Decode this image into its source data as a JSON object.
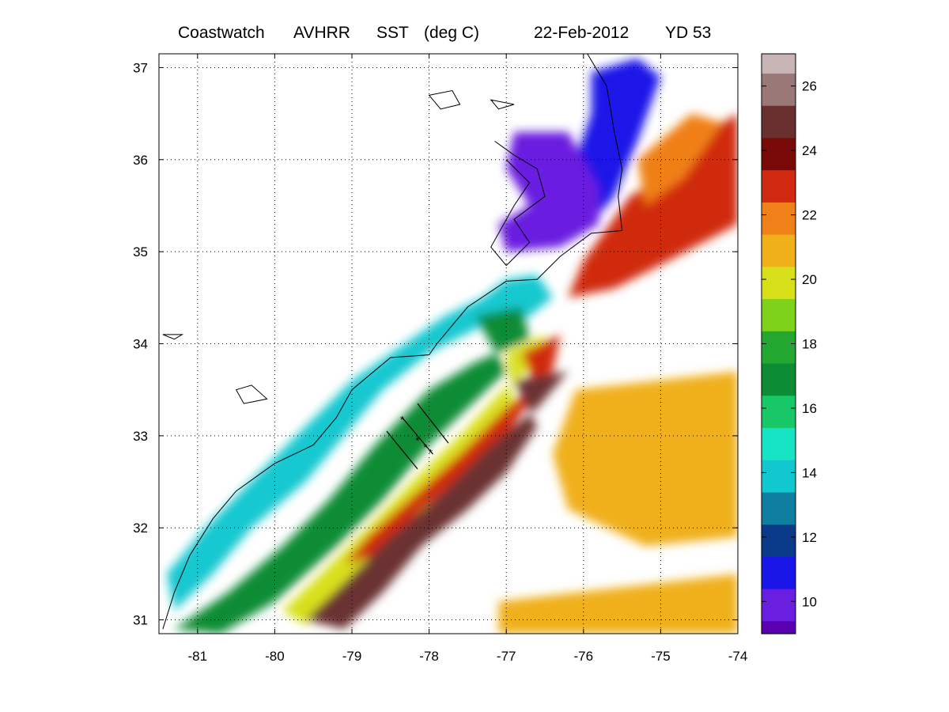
{
  "title": {
    "product": "Coastwatch",
    "sensor": "AVHRR",
    "variable": "SST",
    "units": "(deg C)",
    "date": "22-Feb-2012",
    "yearday": "YD 53"
  },
  "map": {
    "lon_range": [
      -81.5,
      -74
    ],
    "lat_range": [
      30.85,
      37.15
    ],
    "lon_ticks": [
      "-81",
      "-80",
      "-79",
      "-78",
      "-77",
      "-76",
      "-75",
      "-74"
    ],
    "lat_ticks": [
      "31",
      "32",
      "33",
      "34",
      "35",
      "36",
      "37"
    ],
    "grid": "dotted",
    "masked_color": "#ffffff",
    "land_color": "#ffffff",
    "coast_color": "#000000"
  },
  "colorbar": {
    "range": [
      9,
      27
    ],
    "ticks": [
      "10",
      "12",
      "14",
      "16",
      "18",
      "20",
      "22",
      "24",
      "26"
    ],
    "colors": [
      {
        "v": 9,
        "c": "#5a00b0"
      },
      {
        "v": 10,
        "c": "#6a1ee0"
      },
      {
        "v": 11,
        "c": "#1a16e8"
      },
      {
        "v": 12,
        "c": "#0a3a8a"
      },
      {
        "v": 13,
        "c": "#0e7fa0"
      },
      {
        "v": 14,
        "c": "#12c8d0"
      },
      {
        "v": 15,
        "c": "#16e4c4"
      },
      {
        "v": 16,
        "c": "#18c868"
      },
      {
        "v": 17,
        "c": "#0d8c36"
      },
      {
        "v": 18,
        "c": "#22a830"
      },
      {
        "v": 19,
        "c": "#7ed21a"
      },
      {
        "v": 20,
        "c": "#d8e01a"
      },
      {
        "v": 21,
        "c": "#f0b01a"
      },
      {
        "v": 22,
        "c": "#f08018"
      },
      {
        "v": 23,
        "c": "#d02a10"
      },
      {
        "v": 24,
        "c": "#7a0a08"
      },
      {
        "v": 25,
        "c": "#6a3030"
      },
      {
        "v": 26,
        "c": "#9a7878"
      },
      {
        "v": 27,
        "c": "#c8b4b4"
      }
    ]
  },
  "sst_regions": [
    {
      "name": "cape-hatteras-cold-shelf",
      "temp": 10.5,
      "points": [
        [
          -75.9,
          36.95
        ],
        [
          -75.3,
          37.1
        ],
        [
          -75.0,
          36.9
        ],
        [
          -75.3,
          36.2
        ],
        [
          -75.6,
          35.6
        ],
        [
          -76.0,
          35.2
        ],
        [
          -76.5,
          35.1
        ],
        [
          -76.8,
          35.15
        ],
        [
          -76.3,
          35.55
        ],
        [
          -76.1,
          36.0
        ],
        [
          -75.9,
          36.5
        ]
      ]
    },
    {
      "name": "pamlico-sound",
      "temp": 10.0,
      "points": [
        [
          -76.9,
          36.3
        ],
        [
          -76.2,
          36.3
        ],
        [
          -75.8,
          35.7
        ],
        [
          -75.8,
          35.3
        ],
        [
          -76.3,
          35.05
        ],
        [
          -77.0,
          35.0
        ],
        [
          -77.1,
          35.3
        ],
        [
          -76.7,
          35.5
        ],
        [
          -77.0,
          35.9
        ]
      ]
    },
    {
      "name": "slope-warm-core",
      "temp": 23.0,
      "points": [
        [
          -75.4,
          35.6
        ],
        [
          -74.6,
          36.0
        ],
        [
          -74.2,
          36.4
        ],
        [
          -74.0,
          36.5
        ],
        [
          -74.0,
          35.3
        ],
        [
          -74.9,
          34.9
        ],
        [
          -75.6,
          34.6
        ],
        [
          -76.2,
          34.5
        ],
        [
          -76.0,
          34.9
        ]
      ]
    },
    {
      "name": "filament-warm",
      "temp": 21.5,
      "points": [
        [
          -75.3,
          36.0
        ],
        [
          -74.6,
          36.5
        ],
        [
          -74.2,
          36.4
        ],
        [
          -74.7,
          35.8
        ],
        [
          -75.2,
          35.5
        ]
      ]
    },
    {
      "name": "cold-mid-shelf",
      "temp": 13.5,
      "points": [
        [
          -77.0,
          34.7
        ],
        [
          -76.6,
          34.75
        ],
        [
          -76.4,
          34.5
        ],
        [
          -76.7,
          34.3
        ],
        [
          -77.3,
          34.2
        ],
        [
          -78.0,
          33.9
        ],
        [
          -78.6,
          33.5
        ],
        [
          -79.1,
          33.0
        ],
        [
          -79.6,
          32.5
        ],
        [
          -80.3,
          32.0
        ],
        [
          -80.8,
          31.5
        ],
        [
          -81.3,
          31.1
        ],
        [
          -81.4,
          31.5
        ],
        [
          -80.9,
          32.0
        ],
        [
          -80.2,
          32.6
        ],
        [
          -79.6,
          33.1
        ],
        [
          -79.0,
          33.6
        ],
        [
          -78.4,
          33.95
        ],
        [
          -77.8,
          34.3
        ],
        [
          -77.3,
          34.5
        ]
      ]
    },
    {
      "name": "green-transition",
      "temp": 17.0,
      "points": [
        [
          -77.4,
          34.3
        ],
        [
          -76.8,
          34.4
        ],
        [
          -76.7,
          34.05
        ],
        [
          -77.4,
          33.8
        ],
        [
          -78.0,
          33.5
        ],
        [
          -78.7,
          32.9
        ],
        [
          -79.3,
          32.3
        ],
        [
          -79.9,
          31.8
        ],
        [
          -80.6,
          31.3
        ],
        [
          -81.3,
          30.9
        ],
        [
          -80.7,
          30.85
        ],
        [
          -80.0,
          31.2
        ],
        [
          -79.2,
          31.8
        ],
        [
          -78.6,
          32.3
        ],
        [
          -78.0,
          32.9
        ],
        [
          -77.5,
          33.3
        ],
        [
          -77.0,
          33.7
        ]
      ]
    },
    {
      "name": "yellow-front",
      "temp": 20.3,
      "points": [
        [
          -77.0,
          33.9
        ],
        [
          -76.5,
          34.1
        ],
        [
          -76.6,
          33.8
        ],
        [
          -77.1,
          33.45
        ],
        [
          -77.6,
          33.0
        ],
        [
          -78.1,
          32.6
        ],
        [
          -78.8,
          32.0
        ],
        [
          -79.4,
          31.5
        ],
        [
          -79.9,
          31.1
        ],
        [
          -79.6,
          30.95
        ],
        [
          -79.1,
          31.3
        ],
        [
          -78.5,
          31.8
        ],
        [
          -77.9,
          32.35
        ],
        [
          -77.4,
          32.8
        ],
        [
          -76.9,
          33.3
        ]
      ]
    },
    {
      "name": "gulf-stream-edge",
      "temp": 22.5,
      "points": [
        [
          -76.8,
          33.9
        ],
        [
          -76.3,
          34.1
        ],
        [
          -76.4,
          33.7
        ],
        [
          -77.0,
          33.3
        ],
        [
          -77.6,
          32.8
        ],
        [
          -78.2,
          32.35
        ],
        [
          -78.8,
          31.9
        ],
        [
          -79.1,
          31.6
        ],
        [
          -78.7,
          31.7
        ],
        [
          -78.1,
          32.2
        ],
        [
          -77.5,
          32.6
        ],
        [
          -77.0,
          33.0
        ],
        [
          -76.6,
          33.5
        ]
      ]
    },
    {
      "name": "gulf-stream-offshore",
      "temp": 24.5,
      "points": [
        [
          -76.9,
          33.6
        ],
        [
          -76.2,
          33.7
        ],
        [
          -76.6,
          33.3
        ],
        [
          -77.2,
          32.9
        ],
        [
          -77.8,
          32.4
        ],
        [
          -78.5,
          31.9
        ],
        [
          -79.1,
          31.4
        ],
        [
          -79.6,
          31.0
        ],
        [
          -79.1,
          30.9
        ],
        [
          -78.6,
          31.3
        ],
        [
          -78.1,
          31.8
        ],
        [
          -77.5,
          32.2
        ],
        [
          -77.0,
          32.6
        ],
        [
          -76.6,
          33.1
        ]
      ]
    },
    {
      "name": "offshore-patches-east",
      "temp": 20.7,
      "points": [
        [
          -76.1,
          33.5
        ],
        [
          -74.0,
          33.7
        ],
        [
          -74.0,
          31.9
        ],
        [
          -75.2,
          31.8
        ],
        [
          -76.2,
          32.2
        ],
        [
          -76.4,
          32.8
        ]
      ]
    },
    {
      "name": "offshore-patches-south",
      "temp": 21.0,
      "points": [
        [
          -77.1,
          31.2
        ],
        [
          -74.0,
          31.5
        ],
        [
          -74.0,
          30.85
        ],
        [
          -77.1,
          30.85
        ]
      ]
    }
  ],
  "coastline": [
    [
      -75.95,
      37.15
    ],
    [
      -75.7,
      36.8
    ],
    [
      -75.6,
      36.3
    ],
    [
      -75.5,
      35.9
    ],
    [
      -75.55,
      35.6
    ],
    [
      -75.5,
      35.23
    ],
    [
      -75.9,
      35.2
    ],
    [
      -76.3,
      34.95
    ],
    [
      -76.6,
      34.7
    ],
    [
      -77.0,
      34.68
    ],
    [
      -77.5,
      34.4
    ],
    [
      -77.9,
      34.0
    ],
    [
      -78.0,
      33.88
    ],
    [
      -78.5,
      33.85
    ],
    [
      -79.0,
      33.5
    ],
    [
      -79.2,
      33.2
    ],
    [
      -79.5,
      32.9
    ],
    [
      -80.0,
      32.7
    ],
    [
      -80.5,
      32.4
    ],
    [
      -80.8,
      32.1
    ],
    [
      -81.1,
      31.7
    ],
    [
      -81.3,
      31.3
    ],
    [
      -81.45,
      30.9
    ]
  ],
  "sound_coast": [
    [
      -77.15,
      36.2
    ],
    [
      -76.9,
      36.05
    ],
    [
      -76.6,
      35.9
    ],
    [
      -76.5,
      35.6
    ],
    [
      -76.9,
      35.35
    ],
    [
      -76.7,
      35.1
    ],
    [
      -77.0,
      34.85
    ],
    [
      -77.2,
      35.05
    ],
    [
      -76.9,
      35.5
    ],
    [
      -76.7,
      35.75
    ],
    [
      -77.0,
      36.0
    ]
  ],
  "lakes": [
    [
      [
        -78.0,
        36.7
      ],
      [
        -77.7,
        36.75
      ],
      [
        -77.6,
        36.6
      ],
      [
        -77.85,
        36.55
      ]
    ],
    [
      [
        -77.2,
        36.65
      ],
      [
        -76.9,
        36.6
      ],
      [
        -77.1,
        36.55
      ]
    ],
    [
      [
        -80.5,
        33.5
      ],
      [
        -80.3,
        33.55
      ],
      [
        -80.1,
        33.4
      ],
      [
        -80.4,
        33.35
      ]
    ],
    [
      [
        -81.45,
        34.1
      ],
      [
        -81.2,
        34.1
      ],
      [
        -81.3,
        34.05
      ]
    ]
  ],
  "transects": [
    [
      [
        -78.55,
        33.05
      ],
      [
        -78.15,
        32.64
      ]
    ],
    [
      [
        -78.35,
        33.2
      ],
      [
        -77.95,
        32.8
      ]
    ],
    [
      [
        -78.15,
        33.35
      ],
      [
        -77.75,
        32.92
      ]
    ]
  ],
  "stations": [
    [
      -78.35,
      33.18
    ],
    [
      -78.15,
      32.95
    ],
    [
      -78.05,
      32.88
    ],
    [
      -77.98,
      32.82
    ]
  ]
}
